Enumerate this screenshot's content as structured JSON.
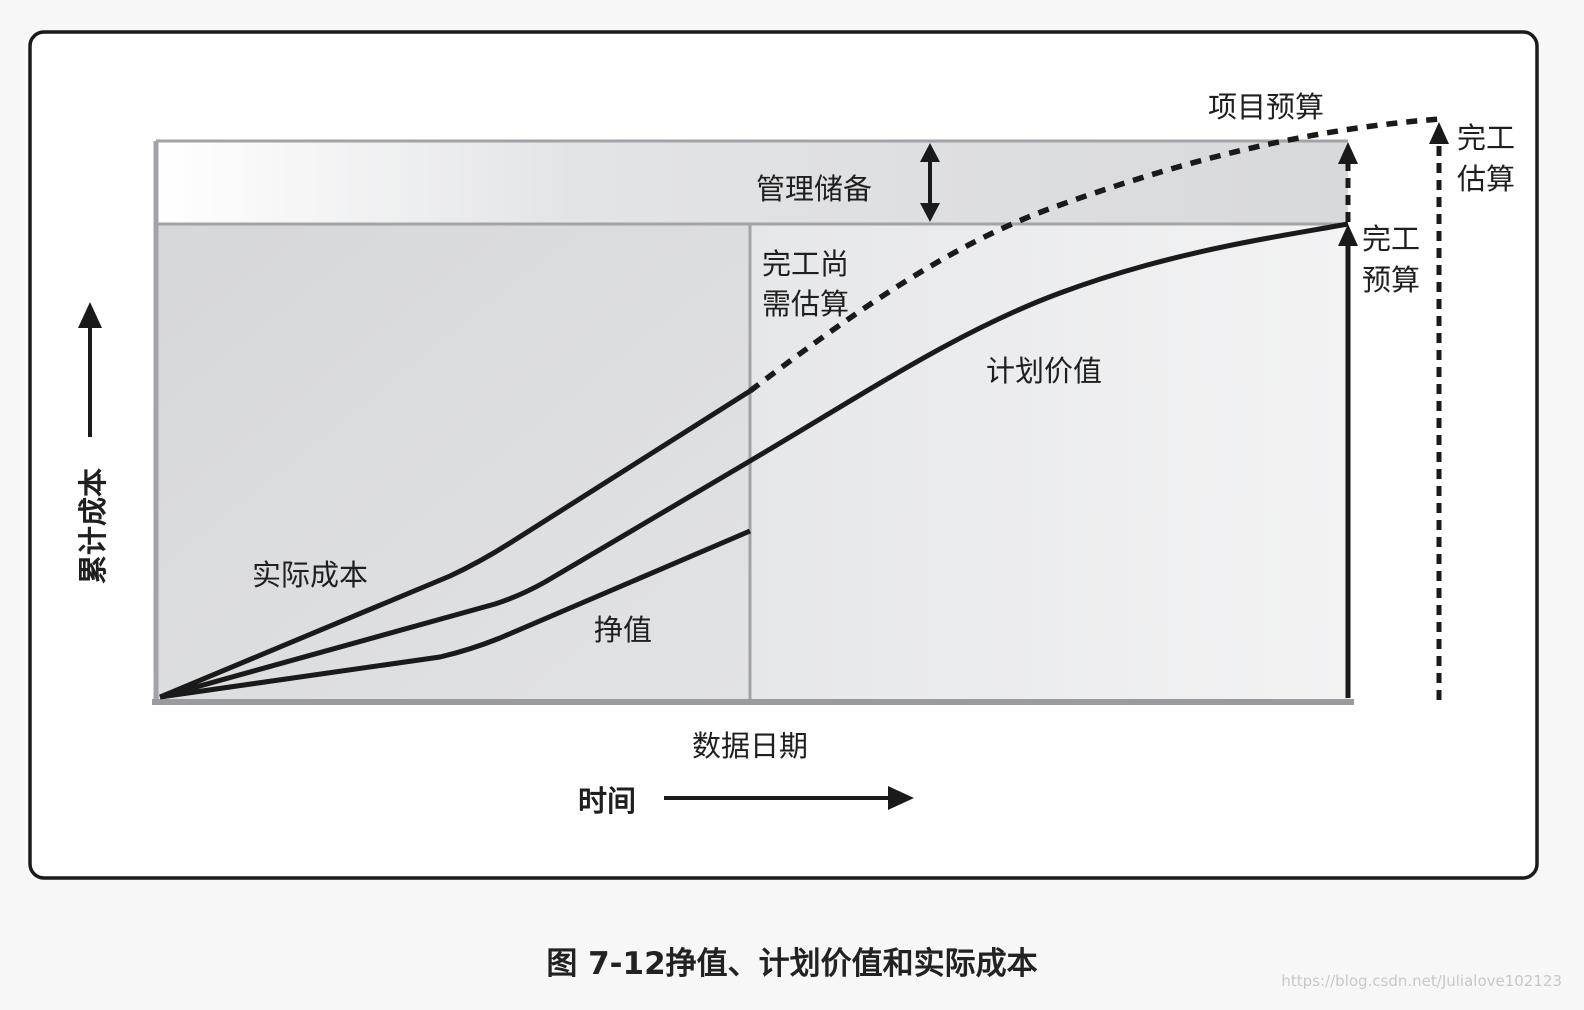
{
  "figure": {
    "caption": "图 7-12挣值、计划价值和实际成本",
    "watermark": "https://blog.csdn.net/Julialove102123"
  },
  "labels": {
    "project_budget": "项目预算",
    "management_reserve": "管理储备",
    "etc_line1": "完工尚",
    "etc_line2": "需估算",
    "eac_line1": "完工",
    "eac_line2": "估算",
    "bac_line1": "完工",
    "bac_line2": "预算",
    "planned_value": "计划价值",
    "actual_cost": "实际成本",
    "earned_value": "挣值",
    "data_date": "数据日期",
    "time_axis": "时间",
    "cost_axis": "累计成本"
  },
  "colors": {
    "frame": "#1a1a1a",
    "curve": "#1a1a1a",
    "reserve_band": "#dadbdd",
    "left_area": "#d9dadc",
    "right_area": "#ededee",
    "axis_gray": "#9a9b9e"
  }
}
